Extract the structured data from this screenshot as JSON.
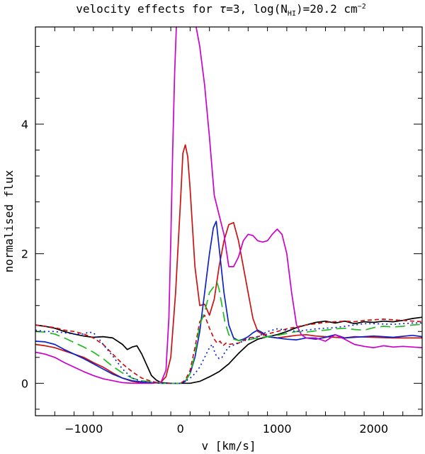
{
  "chart_data": {
    "type": "line",
    "title_parts": {
      "main": "velocity effects for ",
      "tau": "τ",
      "eq": "=3, log(N",
      "sub": "HI",
      "tail": ")=20.2 cm",
      "sup": "−2"
    },
    "xlabel": "v [km/s]",
    "ylabel": "normalised flux",
    "xlim": [
      -1500,
      2500
    ],
    "ylim": [
      -0.5,
      5.5
    ],
    "x_ticks": [
      -1000,
      0,
      1000,
      2000
    ],
    "x_tick_labels": [
      "−1000",
      "0",
      "1000",
      "2000"
    ],
    "y_ticks": [
      0,
      2,
      4
    ],
    "y_tick_labels": [
      "0",
      "2",
      "4"
    ],
    "grid": false,
    "series": [
      {
        "color": "#000000",
        "dash": "",
        "x": [
          -1500,
          -1400,
          -1300,
          -1200,
          -1100,
          -1000,
          -900,
          -800,
          -700,
          -600,
          -550,
          -500,
          -450,
          -400,
          -300,
          -250,
          -200,
          -100,
          0,
          100,
          200,
          300,
          400,
          500,
          600,
          700,
          800,
          900,
          1000,
          1100,
          1200,
          1300,
          1400,
          1500,
          1600,
          1700,
          1800,
          1900,
          2000,
          2100,
          2200,
          2300,
          2400,
          2500
        ],
        "y": [
          0.9,
          0.88,
          0.85,
          0.8,
          0.76,
          0.73,
          0.71,
          0.72,
          0.7,
          0.6,
          0.52,
          0.56,
          0.58,
          0.45,
          0.12,
          0.05,
          0.01,
          0.0,
          0.0,
          0.0,
          0.03,
          0.1,
          0.18,
          0.3,
          0.46,
          0.6,
          0.68,
          0.72,
          0.75,
          0.8,
          0.86,
          0.9,
          0.94,
          0.96,
          0.93,
          0.96,
          0.92,
          0.95,
          0.94,
          0.96,
          0.95,
          0.97,
          1.0,
          1.02
        ]
      },
      {
        "color": "#cc1111",
        "dash": "",
        "x": [
          -1500,
          -1400,
          -1300,
          -1200,
          -1100,
          -1000,
          -900,
          -800,
          -700,
          -600,
          -500,
          -400,
          -300,
          -200,
          -150,
          -100,
          -50,
          0,
          25,
          50,
          75,
          100,
          125,
          150,
          200,
          250,
          300,
          350,
          400,
          450,
          500,
          550,
          600,
          650,
          700,
          750,
          800,
          900,
          1000,
          1100,
          1200,
          1300,
          1400,
          1500,
          1600,
          1700,
          1800,
          2000,
          2200,
          2400,
          2500
        ],
        "y": [
          0.6,
          0.58,
          0.55,
          0.5,
          0.45,
          0.4,
          0.32,
          0.25,
          0.16,
          0.08,
          0.03,
          0.01,
          0.0,
          0.02,
          0.1,
          0.4,
          1.4,
          2.8,
          3.55,
          3.68,
          3.5,
          3.0,
          2.4,
          1.8,
          1.2,
          1.22,
          1.05,
          1.3,
          1.8,
          2.2,
          2.45,
          2.48,
          2.2,
          1.8,
          1.4,
          1.0,
          0.8,
          0.72,
          0.7,
          0.72,
          0.74,
          0.75,
          0.73,
          0.72,
          0.71,
          0.7,
          0.72,
          0.71,
          0.7,
          0.7,
          0.7
        ]
      },
      {
        "color": "#0b22cc",
        "dash": "",
        "x": [
          -1500,
          -1400,
          -1300,
          -1200,
          -1100,
          -1000,
          -900,
          -800,
          -700,
          -600,
          -500,
          -400,
          -300,
          -200,
          -100,
          0,
          50,
          100,
          150,
          200,
          250,
          300,
          340,
          370,
          400,
          450,
          500,
          550,
          600,
          650,
          700,
          750,
          800,
          850,
          900,
          1000,
          1100,
          1200,
          1300,
          1400,
          1500,
          1600,
          1700,
          1800,
          1900,
          2000,
          2200,
          2400,
          2500
        ],
        "y": [
          0.65,
          0.64,
          0.6,
          0.52,
          0.45,
          0.38,
          0.3,
          0.22,
          0.14,
          0.08,
          0.04,
          0.02,
          0.01,
          0.0,
          0.0,
          0.0,
          0.03,
          0.15,
          0.4,
          0.8,
          1.4,
          2.0,
          2.4,
          2.5,
          2.1,
          1.4,
          0.9,
          0.7,
          0.66,
          0.68,
          0.72,
          0.78,
          0.82,
          0.78,
          0.72,
          0.7,
          0.68,
          0.67,
          0.7,
          0.68,
          0.71,
          0.75,
          0.7,
          0.71,
          0.72,
          0.73,
          0.71,
          0.74,
          0.72
        ]
      },
      {
        "color": "#cc00cc",
        "dash": "",
        "x": [
          -1500,
          -1400,
          -1300,
          -1200,
          -1100,
          -1000,
          -900,
          -800,
          -700,
          -600,
          -500,
          -400,
          -300,
          -200,
          -150,
          -120,
          -100,
          -80,
          -60,
          -40,
          -20,
          0,
          20,
          40,
          100,
          150,
          200,
          250,
          300,
          350,
          400,
          450,
          500,
          550,
          600,
          650,
          700,
          750,
          800,
          850,
          900,
          950,
          1000,
          1050,
          1100,
          1150,
          1200,
          1250,
          1300,
          1400,
          1500,
          1600,
          1700,
          1800,
          1900,
          2000,
          2100,
          2200,
          2300,
          2400,
          2500
        ],
        "y": [
          0.48,
          0.45,
          0.4,
          0.32,
          0.25,
          0.18,
          0.12,
          0.07,
          0.04,
          0.01,
          0.0,
          0.0,
          0.0,
          0.02,
          0.2,
          1.0,
          2.2,
          3.6,
          4.8,
          5.6,
          6.2,
          6.4,
          6.2,
          6.0,
          5.8,
          5.6,
          5.2,
          4.6,
          3.8,
          2.9,
          2.6,
          2.3,
          1.8,
          1.8,
          1.95,
          2.2,
          2.3,
          2.28,
          2.2,
          2.18,
          2.2,
          2.3,
          2.38,
          2.3,
          2.0,
          1.4,
          0.9,
          0.75,
          0.7,
          0.7,
          0.65,
          0.75,
          0.68,
          0.6,
          0.57,
          0.55,
          0.58,
          0.56,
          0.57,
          0.56,
          0.55
        ]
      },
      {
        "color": "#cc1111",
        "dash": "6,4",
        "x": [
          -1500,
          -1400,
          -1300,
          -1200,
          -1100,
          -1000,
          -900,
          -800,
          -700,
          -600,
          -500,
          -400,
          -300,
          -200,
          -100,
          0,
          50,
          100,
          150,
          200,
          250,
          300,
          350,
          380,
          410,
          440,
          470,
          500,
          600,
          700,
          800,
          900,
          1000,
          1100,
          1200,
          1300,
          1400,
          1500,
          1600,
          1700,
          1800,
          1900,
          2000,
          2100,
          2200,
          2300,
          2400,
          2500
        ],
        "y": [
          0.9,
          0.88,
          0.86,
          0.82,
          0.8,
          0.76,
          0.7,
          0.6,
          0.45,
          0.3,
          0.18,
          0.08,
          0.03,
          0.0,
          0.0,
          0.0,
          0.05,
          0.2,
          0.55,
          0.95,
          1.05,
          0.85,
          0.68,
          0.62,
          0.65,
          0.58,
          0.62,
          0.6,
          0.62,
          0.7,
          0.72,
          0.76,
          0.8,
          0.84,
          0.87,
          0.9,
          0.92,
          0.94,
          0.95,
          0.96,
          0.95,
          0.97,
          0.98,
          0.99,
          0.98,
          0.97,
          0.96,
          0.95
        ]
      },
      {
        "color": "#22bb22",
        "dash": "14,7",
        "x": [
          -1500,
          -1400,
          -1300,
          -1200,
          -1100,
          -1000,
          -900,
          -800,
          -700,
          -600,
          -500,
          -400,
          -300,
          -200,
          -100,
          0,
          50,
          100,
          150,
          200,
          250,
          300,
          350,
          380,
          400,
          430,
          460,
          500,
          550,
          600,
          700,
          800,
          900,
          1000,
          1100,
          1200,
          1300,
          1400,
          1500,
          1600,
          1700,
          1800,
          1900,
          2000,
          2100,
          2200,
          2300,
          2400,
          2500
        ],
        "y": [
          0.8,
          0.79,
          0.76,
          0.7,
          0.63,
          0.56,
          0.48,
          0.38,
          0.26,
          0.16,
          0.08,
          0.04,
          0.02,
          0.0,
          0.0,
          0.0,
          0.03,
          0.15,
          0.45,
          0.9,
          1.1,
          1.4,
          1.5,
          1.55,
          1.45,
          1.2,
          0.95,
          0.75,
          0.68,
          0.66,
          0.67,
          0.7,
          0.72,
          0.74,
          0.77,
          0.8,
          0.79,
          0.81,
          0.82,
          0.84,
          0.85,
          0.83,
          0.82,
          0.86,
          0.88,
          0.87,
          0.88,
          0.9,
          0.91
        ]
      },
      {
        "color": "#0b22cc",
        "dash": "2,4",
        "x": [
          -1500,
          -1400,
          -1300,
          -1200,
          -1100,
          -1000,
          -950,
          -900,
          -850,
          -800,
          -700,
          -600,
          -500,
          -400,
          -300,
          -200,
          -100,
          0,
          50,
          100,
          150,
          200,
          250,
          300,
          330,
          360,
          400,
          430,
          460,
          500,
          600,
          700,
          800,
          900,
          1000,
          1100,
          1200,
          1300,
          1400,
          1500,
          1600,
          1700,
          1800,
          1900,
          2000,
          2200,
          2400,
          2500
        ],
        "y": [
          0.82,
          0.8,
          0.8,
          0.78,
          0.76,
          0.76,
          0.79,
          0.78,
          0.7,
          0.6,
          0.42,
          0.22,
          0.08,
          0.03,
          0.01,
          0.0,
          0.0,
          0.0,
          0.03,
          0.08,
          0.15,
          0.25,
          0.4,
          0.55,
          0.6,
          0.45,
          0.38,
          0.4,
          0.48,
          0.56,
          0.62,
          0.68,
          0.72,
          0.8,
          0.84,
          0.82,
          0.8,
          0.82,
          0.84,
          0.85,
          0.86,
          0.88,
          0.9,
          0.92,
          0.92,
          0.91,
          0.93,
          0.93
        ]
      }
    ]
  }
}
